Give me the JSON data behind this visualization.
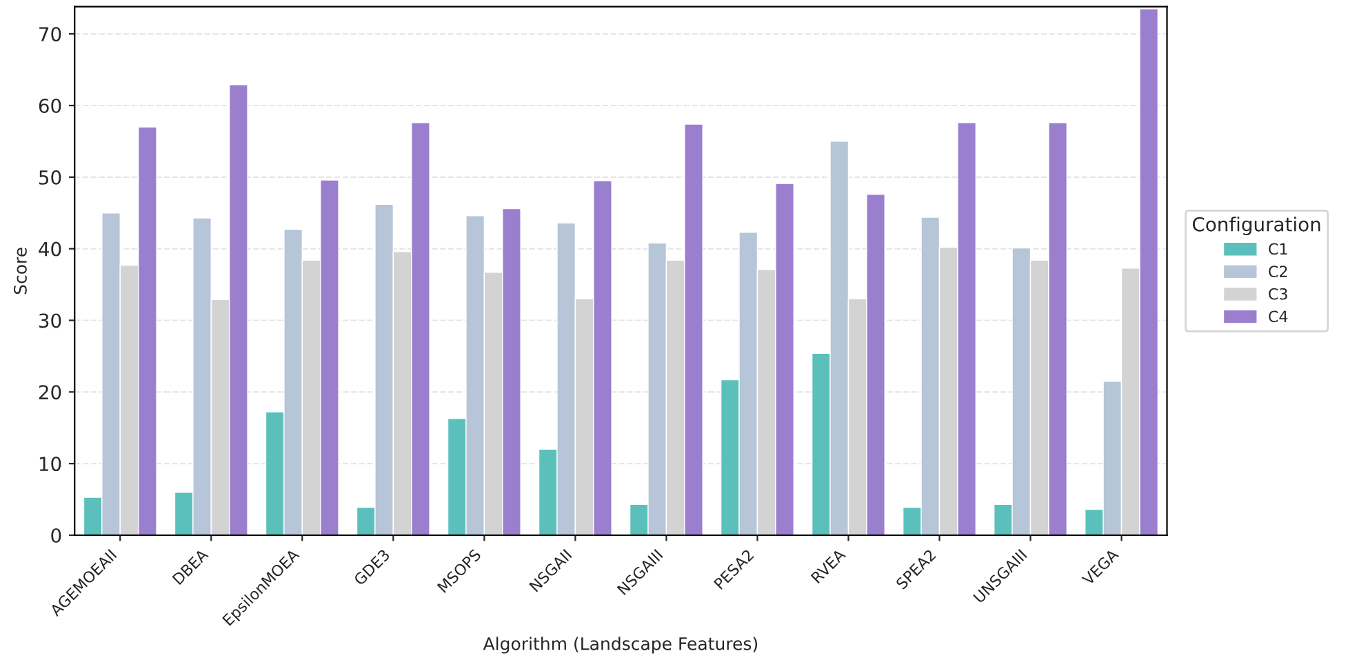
{
  "chart_data": {
    "type": "bar",
    "xlabel": "Algorithm (Landscape Features)",
    "ylabel": "Score",
    "legend_title": "Configuration",
    "categories": [
      "AGEMOEAII",
      "DBEA",
      "EpsilonMOEA",
      "GDE3",
      "MSOPS",
      "NSGAII",
      "NSGAIII",
      "PESA2",
      "RVEA",
      "SPEA2",
      "UNSGAIII",
      "VEGA"
    ],
    "series": [
      {
        "name": "C1",
        "color": "#5bc0bb",
        "values": [
          5.3,
          6.0,
          17.2,
          3.9,
          16.3,
          12.0,
          4.3,
          21.7,
          25.4,
          3.9,
          4.3,
          3.6
        ]
      },
      {
        "name": "C2",
        "color": "#b6c5d8",
        "values": [
          45.0,
          44.3,
          42.7,
          46.2,
          44.6,
          43.6,
          40.8,
          42.3,
          55.0,
          44.4,
          40.1,
          21.5
        ]
      },
      {
        "name": "C3",
        "color": "#d3d3d3",
        "values": [
          37.7,
          32.9,
          38.4,
          39.6,
          36.7,
          33.0,
          38.4,
          37.1,
          33.0,
          40.2,
          38.4,
          37.3
        ]
      },
      {
        "name": "C4",
        "color": "#9a7fcf",
        "values": [
          57.0,
          62.9,
          49.6,
          57.6,
          45.6,
          49.5,
          57.4,
          49.1,
          47.6,
          57.6,
          57.6,
          73.5
        ]
      }
    ],
    "ylim": [
      0,
      73.8
    ],
    "yticks": [
      0,
      10,
      20,
      30,
      40,
      50,
      60,
      70
    ],
    "grid": "y",
    "legend": "right"
  }
}
